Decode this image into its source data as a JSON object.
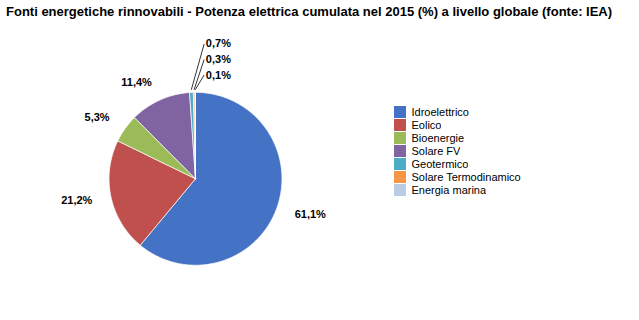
{
  "chart_data": {
    "type": "pie",
    "title": "Fonti energetiche rinnovabili - Potenza elettrica cumulata nel 2015 (%) a livello globale (fonte: IEA)",
    "categories": [
      "Idroelettrico",
      "Eolico",
      "Bioenergie",
      "Solare FV",
      "Geotermico",
      "Solare Termodinamico",
      "Energia marina"
    ],
    "values": [
      61.1,
      21.2,
      5.3,
      11.4,
      0.7,
      0.3,
      0.1
    ],
    "value_labels": [
      "61,1%",
      "21,2%",
      "5,3%",
      "11,4%",
      "0,7%",
      "0,3%",
      "0,1%"
    ],
    "colors": [
      "#4472C4",
      "#C0504D",
      "#9BBB59",
      "#8064A2",
      "#4BACC6",
      "#F79646",
      "#B8CCE4"
    ],
    "data_labels": true,
    "legend": "right"
  }
}
